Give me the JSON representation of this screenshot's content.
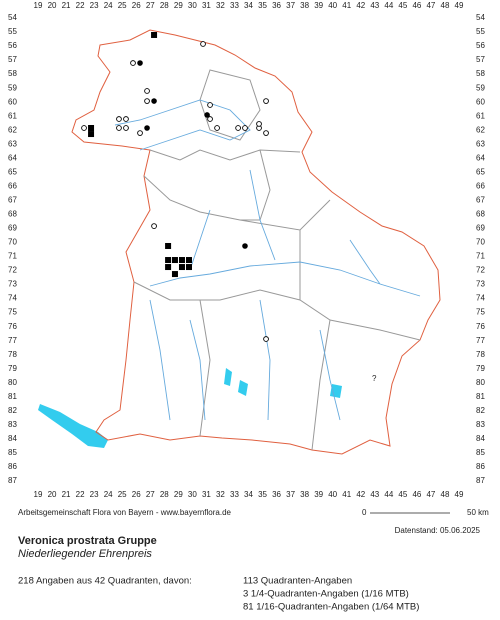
{
  "grid": {
    "columns": [
      19,
      20,
      21,
      22,
      23,
      24,
      25,
      26,
      27,
      28,
      29,
      30,
      31,
      32,
      33,
      34,
      35,
      36,
      37,
      38,
      39,
      40,
      41,
      42,
      43,
      44,
      45,
      46,
      47,
      48,
      49
    ],
    "rows": [
      54,
      55,
      56,
      57,
      58,
      59,
      60,
      61,
      62,
      63,
      64,
      65,
      66,
      67,
      68,
      69,
      70,
      71,
      72,
      73,
      74,
      75,
      76,
      77,
      78,
      79,
      80,
      81,
      82,
      83,
      84,
      85,
      86,
      87
    ]
  },
  "map_annotation": "?",
  "records": [
    {
      "col": 27.27,
      "row": 55.21,
      "kind": "square"
    },
    {
      "col": 22.78,
      "row": 61.84,
      "kind": "square"
    },
    {
      "col": 22.78,
      "row": 62.27,
      "kind": "square"
    },
    {
      "col": 28.27,
      "row": 70.25,
      "kind": "square"
    },
    {
      "col": 28.27,
      "row": 71.25,
      "kind": "square"
    },
    {
      "col": 28.76,
      "row": 71.25,
      "kind": "square"
    },
    {
      "col": 29.26,
      "row": 71.25,
      "kind": "square"
    },
    {
      "col": 29.76,
      "row": 71.25,
      "kind": "square"
    },
    {
      "col": 28.27,
      "row": 71.75,
      "kind": "square"
    },
    {
      "col": 29.26,
      "row": 71.75,
      "kind": "square"
    },
    {
      "col": 29.76,
      "row": 71.75,
      "kind": "square"
    },
    {
      "col": 28.76,
      "row": 72.25,
      "kind": "square"
    },
    {
      "col": 26.27,
      "row": 57.21,
      "kind": "dot"
    },
    {
      "col": 27.27,
      "row": 59.92,
      "kind": "dot"
    },
    {
      "col": 26.77,
      "row": 61.84,
      "kind": "dot"
    },
    {
      "col": 33.75,
      "row": 70.25,
      "kind": "dot"
    },
    {
      "col": 31.05,
      "row": 60.91,
      "kind": "dot"
    },
    {
      "col": 22.28,
      "row": 61.84,
      "kind": "circle"
    },
    {
      "col": 24.77,
      "row": 61.2,
      "kind": "circle"
    },
    {
      "col": 25.27,
      "row": 61.2,
      "kind": "circle"
    },
    {
      "col": 24.77,
      "row": 61.84,
      "kind": "circle"
    },
    {
      "col": 25.27,
      "row": 61.84,
      "kind": "circle"
    },
    {
      "col": 25.77,
      "row": 57.21,
      "kind": "circle"
    },
    {
      "col": 26.77,
      "row": 59.2,
      "kind": "circle"
    },
    {
      "col": 26.77,
      "row": 59.92,
      "kind": "circle"
    },
    {
      "col": 30.76,
      "row": 55.85,
      "kind": "circle"
    },
    {
      "col": 31.26,
      "row": 60.2,
      "kind": "circle"
    },
    {
      "col": 31.26,
      "row": 61.2,
      "kind": "circle"
    },
    {
      "col": 31.76,
      "row": 61.84,
      "kind": "circle"
    },
    {
      "col": 33.26,
      "row": 61.84,
      "kind": "circle"
    },
    {
      "col": 33.75,
      "row": 61.84,
      "kind": "circle"
    },
    {
      "col": 34.75,
      "row": 61.84,
      "kind": "circle"
    },
    {
      "col": 35.25,
      "row": 59.92,
      "kind": "circle"
    },
    {
      "col": 34.75,
      "row": 61.55,
      "kind": "circle"
    },
    {
      "col": 35.25,
      "row": 62.2,
      "kind": "circle"
    },
    {
      "col": 27.27,
      "row": 68.83,
      "kind": "circle"
    },
    {
      "col": 26.27,
      "row": 62.2,
      "kind": "circle"
    },
    {
      "col": 35.25,
      "row": 76.88,
      "kind": "circle"
    }
  ],
  "footer": {
    "credit": "Arbeitsgemeinschaft Flora von Bayern - www.bayernflora.de",
    "scale_start": "0",
    "scale_end": "50 km",
    "date": "Datenstand: 05.06.2025",
    "title": "Veronica prostrata Gruppe",
    "subtitle": "Niederliegender Ehrenpreis",
    "summary": "218 Angaben aus 42 Quadranten, davon:",
    "breakdown": [
      "113 Quadranten-Angaben",
      "3 1/4-Quadranten-Angaben (1/16 MTB)",
      "81 1/16-Quadranten-Angaben (1/64 MTB)"
    ]
  }
}
